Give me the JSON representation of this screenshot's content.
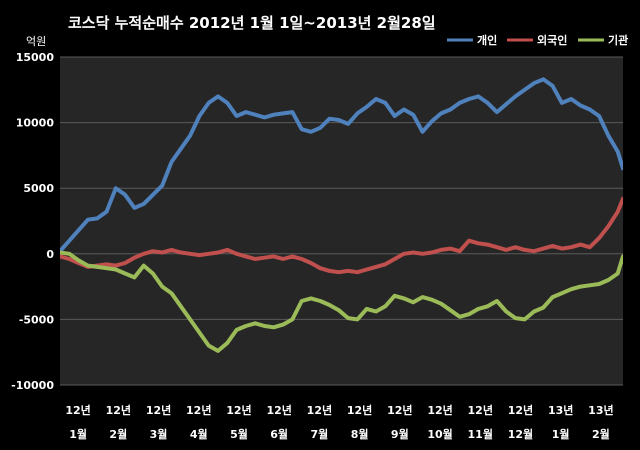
{
  "chart_data": {
    "type": "line",
    "title": "코스닥  누적순매수 2012년 1월 1일~2013년 2월28일",
    "ylabel": "억원",
    "ylim": [
      -10000,
      15000
    ],
    "yticks": [
      15000,
      10000,
      5000,
      0,
      -5000,
      -10000
    ],
    "ytick_labels": [
      "15000",
      "10000",
      "5000",
      "0",
      "-5000",
      "-10000"
    ],
    "xlim": [
      "2012-01-01",
      "2013-02-28"
    ],
    "x_tick_labels": [
      {
        "year": "12년",
        "month": "1월"
      },
      {
        "year": "12년",
        "month": "2월"
      },
      {
        "year": "12년",
        "month": "3월"
      },
      {
        "year": "12년",
        "month": "4월"
      },
      {
        "year": "12년",
        "month": "5월"
      },
      {
        "year": "12년",
        "month": "6월"
      },
      {
        "year": "12년",
        "month": "7월"
      },
      {
        "year": "12년",
        "month": "8월"
      },
      {
        "year": "12년",
        "month": "9월"
      },
      {
        "year": "12년",
        "month": "10월"
      },
      {
        "year": "12년",
        "month": "11월"
      },
      {
        "year": "12년",
        "month": "12월"
      },
      {
        "year": "13년",
        "month": "1월"
      },
      {
        "year": "13년",
        "month": "2월"
      }
    ],
    "grid": {
      "horizontal": true,
      "vertical": false
    },
    "legend_position": "top-right",
    "x": [
      "2012-01-01",
      "2012-01-08",
      "2012-01-15",
      "2012-01-22",
      "2012-01-29",
      "2012-02-05",
      "2012-02-12",
      "2012-02-19",
      "2012-02-26",
      "2012-03-04",
      "2012-03-11",
      "2012-03-18",
      "2012-03-25",
      "2012-04-01",
      "2012-04-08",
      "2012-04-15",
      "2012-04-22",
      "2012-04-29",
      "2012-05-06",
      "2012-05-13",
      "2012-05-20",
      "2012-05-27",
      "2012-06-03",
      "2012-06-10",
      "2012-06-17",
      "2012-06-24",
      "2012-07-01",
      "2012-07-08",
      "2012-07-15",
      "2012-07-22",
      "2012-07-29",
      "2012-08-05",
      "2012-08-12",
      "2012-08-19",
      "2012-08-26",
      "2012-09-02",
      "2012-09-09",
      "2012-09-16",
      "2012-09-23",
      "2012-09-30",
      "2012-10-07",
      "2012-10-14",
      "2012-10-21",
      "2012-10-28",
      "2012-11-04",
      "2012-11-11",
      "2012-11-18",
      "2012-11-25",
      "2012-12-02",
      "2012-12-09",
      "2012-12-16",
      "2012-12-23",
      "2012-12-30",
      "2013-01-06",
      "2013-01-13",
      "2013-01-20",
      "2013-01-27",
      "2013-02-03",
      "2013-02-10",
      "2013-02-17",
      "2013-02-24",
      "2013-02-28"
    ],
    "series": [
      {
        "name": "개인",
        "color": "#4f81bd",
        "values": [
          200,
          1000,
          1800,
          2600,
          2700,
          3200,
          5000,
          4500,
          3500,
          3800,
          4500,
          5200,
          7000,
          8000,
          9000,
          10500,
          11500,
          12000,
          11500,
          10500,
          10800,
          10600,
          10400,
          10600,
          10700,
          10800,
          9500,
          9300,
          9600,
          10300,
          10200,
          9900,
          10700,
          11200,
          11800,
          11500,
          10500,
          11000,
          10600,
          9300,
          10100,
          10700,
          11000,
          11500,
          11800,
          12000,
          11500,
          10800,
          11400,
          12000,
          12500,
          13000,
          13300,
          12800,
          11500,
          11800,
          11300,
          11000,
          10500,
          9000,
          7800,
          6500
        ]
      },
      {
        "name": "외국인",
        "color": "#c0504d",
        "values": [
          -200,
          -400,
          -700,
          -1000,
          -900,
          -800,
          -900,
          -700,
          -300,
          0,
          200,
          100,
          300,
          100,
          0,
          -100,
          0,
          100,
          300,
          0,
          -200,
          -400,
          -300,
          -200,
          -400,
          -200,
          -400,
          -700,
          -1100,
          -1300,
          -1400,
          -1300,
          -1400,
          -1200,
          -1000,
          -800,
          -400,
          0,
          100,
          0,
          100,
          300,
          400,
          200,
          1000,
          800,
          700,
          500,
          300,
          500,
          300,
          200,
          400,
          600,
          400,
          500,
          700,
          500,
          1200,
          2100,
          3200,
          4200
        ]
      },
      {
        "name": "기관",
        "color": "#9bbb59",
        "values": [
          100,
          0,
          -500,
          -900,
          -1000,
          -1100,
          -1200,
          -1500,
          -1800,
          -900,
          -1500,
          -2500,
          -3000,
          -4000,
          -5000,
          -6000,
          -7000,
          -7400,
          -6800,
          -5800,
          -5500,
          -5300,
          -5500,
          -5600,
          -5400,
          -5000,
          -3600,
          -3400,
          -3600,
          -3900,
          -4300,
          -4900,
          -5000,
          -4200,
          -4400,
          -4000,
          -3200,
          -3400,
          -3700,
          -3300,
          -3500,
          -3800,
          -4300,
          -4800,
          -4600,
          -4200,
          -4000,
          -3600,
          -4400,
          -4900,
          -5000,
          -4400,
          -4100,
          -3300,
          -3000,
          -2700,
          -2500,
          -2400,
          -2300,
          -2000,
          -1500,
          -200
        ]
      }
    ]
  }
}
